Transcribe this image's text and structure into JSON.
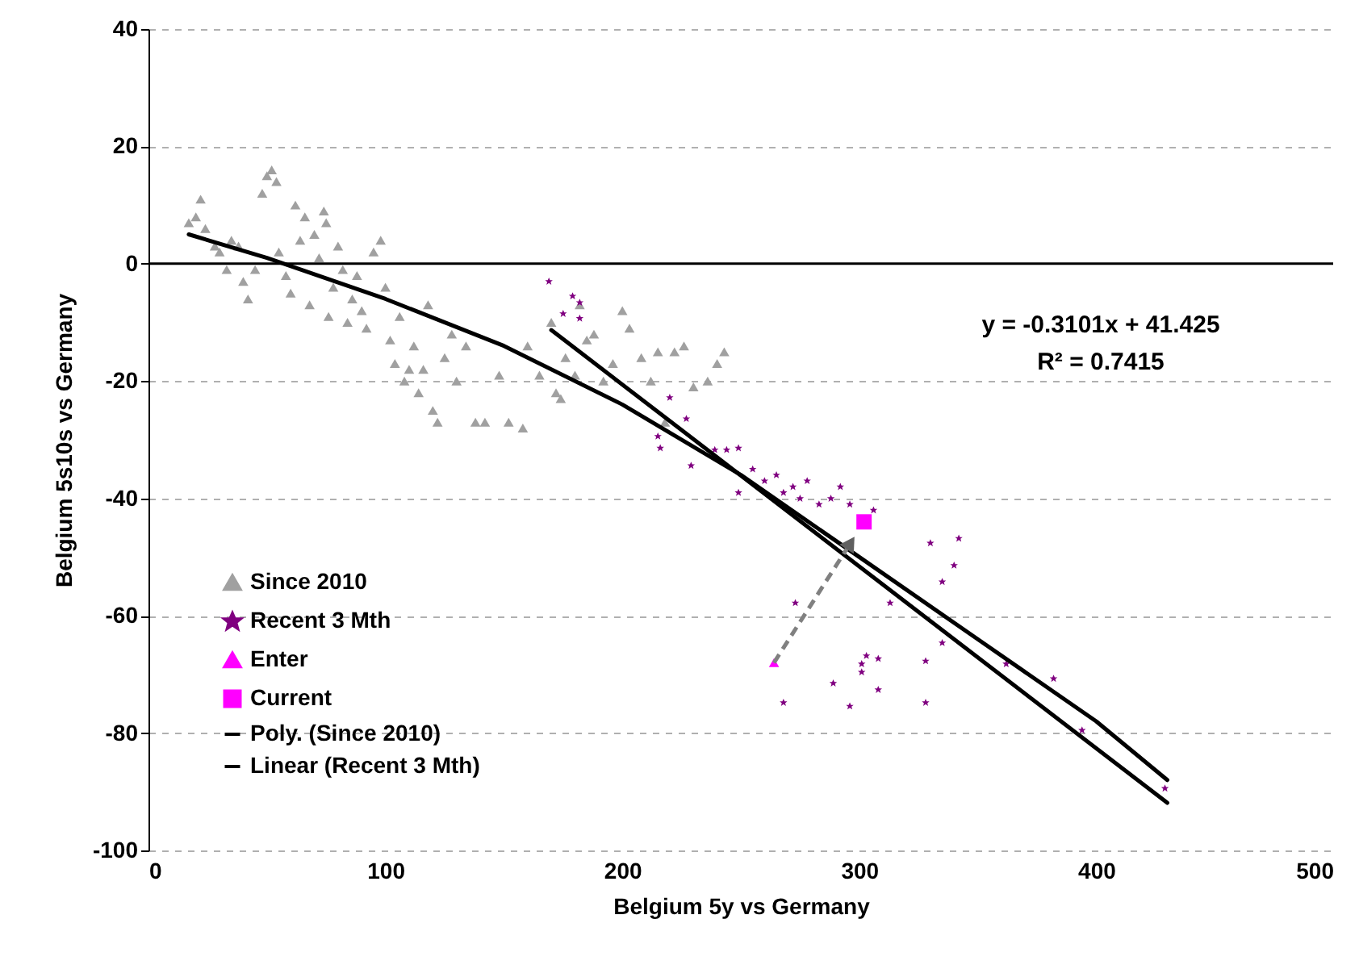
{
  "chart_data": {
    "type": "scatter",
    "xlabel": "Belgium 5y vs Germany",
    "ylabel": "Belgium 5s10s vs Germany",
    "xlim": [
      0,
      500
    ],
    "xticks": [
      0,
      100,
      200,
      300,
      400,
      500
    ],
    "ylim": [
      -100,
      40
    ],
    "yticks": [
      -100,
      -80,
      -60,
      -40,
      -20,
      0,
      20,
      40
    ],
    "grid": "y",
    "legend": "bottom left",
    "ref_lines": [
      {
        "axis": "y",
        "value": 0,
        "color": "#000000",
        "line_style": "solid"
      }
    ],
    "annotations": [
      "y = -0.3101x + 41.425",
      "R² = 0.7415"
    ],
    "series": [
      {
        "name": "Since 2010",
        "type": "scatter",
        "marker": "triangle",
        "color": "#a0a0a0",
        "x": [
          17,
          20,
          22,
          24,
          28,
          30,
          33,
          35,
          38,
          40,
          42,
          45,
          48,
          50,
          52,
          54,
          55,
          58,
          60,
          62,
          64,
          66,
          68,
          70,
          72,
          74,
          75,
          76,
          78,
          80,
          82,
          84,
          86,
          88,
          90,
          92,
          95,
          98,
          100,
          102,
          104,
          106,
          108,
          110,
          112,
          114,
          116,
          118,
          120,
          122,
          125,
          128,
          130,
          134,
          138,
          142,
          148,
          152,
          158,
          160,
          165,
          170,
          172,
          174,
          176,
          180,
          182,
          185,
          188,
          192,
          196,
          200,
          203,
          208,
          212,
          215,
          218,
          222,
          226,
          230,
          236,
          240,
          243
        ],
        "values": [
          7,
          8,
          11,
          6,
          3,
          2,
          -1,
          4,
          3,
          -3,
          -6,
          -1,
          12,
          15,
          16,
          14,
          2,
          -2,
          -5,
          10,
          4,
          8,
          -7,
          5,
          1,
          9,
          7,
          -9,
          -4,
          3,
          -1,
          -10,
          -6,
          -2,
          -8,
          -11,
          2,
          4,
          -4,
          -13,
          -17,
          -9,
          -20,
          -18,
          -14,
          -22,
          -18,
          -7,
          -25,
          -27,
          -16,
          -12,
          -20,
          -14,
          -27,
          -27,
          -19,
          -27,
          -28,
          -14,
          -19,
          -10,
          -22,
          -23,
          -16,
          -19,
          -7,
          -13,
          -12,
          -20,
          -17,
          -8,
          -11,
          -16,
          -20,
          -15,
          -27,
          -15,
          -14,
          -21,
          -20,
          -17,
          -15
        ]
      },
      {
        "name": "Recent 3 Mth",
        "type": "scatter",
        "marker": "star",
        "color": "#800080",
        "x": [
          169,
          175,
          179,
          182,
          182,
          215,
          216,
          220,
          227,
          229,
          239,
          244,
          249,
          249,
          255,
          260,
          265,
          268,
          272,
          275,
          278,
          283,
          288,
          292,
          296,
          306,
          268,
          273,
          289,
          296,
          301,
          301,
          303,
          308,
          308,
          313,
          328,
          328,
          330,
          335,
          335,
          340,
          342,
          362,
          382,
          394,
          429
        ],
        "values": [
          -3,
          -8.5,
          -5.5,
          -6.6,
          -9.3,
          -29.4,
          -31.4,
          -22.8,
          -26.4,
          -34.4,
          -31.7,
          -31.7,
          -31.4,
          -39,
          -35,
          -37,
          -36,
          -39,
          -38,
          -40,
          -37,
          -41,
          -40,
          -38,
          -41,
          -42,
          -74.8,
          -57.8,
          -71.5,
          -75.4,
          -68.2,
          -69.6,
          -66.8,
          -67.3,
          -72.6,
          -57.8,
          -67.7,
          -74.8,
          -47.6,
          -54.2,
          -64.6,
          -51.4,
          -46.8,
          -68.2,
          -70.7,
          -79.5,
          -89.4
        ]
      },
      {
        "name": "Enter",
        "type": "scatter",
        "marker": "triangle",
        "color": "#ff00ff",
        "x": [
          264
        ],
        "values": [
          -68
        ]
      },
      {
        "name": "Current",
        "type": "scatter",
        "marker": "square",
        "color": "#ff00ff",
        "x": [
          302
        ],
        "values": [
          -44
        ]
      },
      {
        "name": "Poly. (Since 2010)",
        "type": "line",
        "marker": "none",
        "line_style": "solid",
        "color": "#000000",
        "x": [
          17,
          50,
          100,
          150,
          200,
          250,
          300,
          350,
          400,
          430
        ],
        "values": [
          5,
          1,
          -6,
          -14,
          -24,
          -36,
          -50,
          -64,
          -78,
          -88
        ]
      },
      {
        "name": "Linear (Recent 3 Mth)",
        "type": "line",
        "marker": "none",
        "line_style": "solid",
        "color": "#000000",
        "x": [
          170,
          430
        ],
        "values": [
          -11.3,
          -91.9
        ]
      }
    ]
  }
}
